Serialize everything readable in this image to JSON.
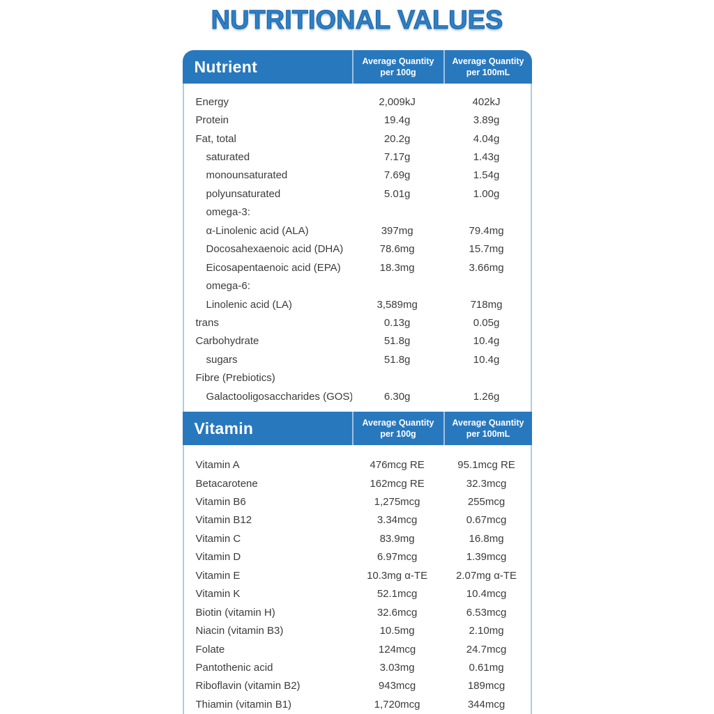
{
  "title": "NUTRITIONAL VALUES",
  "colors": {
    "header_blue": "#2878BE",
    "title_blue": "#2E80C4",
    "title_outline": "#1C5FA0",
    "body_border_light_blue": "#AECBE3",
    "text": "#3B3B3B"
  },
  "sections": [
    {
      "name": "Nutrient",
      "columns": [
        {
          "line1": "Average Quantity",
          "line2": "per 100g"
        },
        {
          "line1": "Average Quantity",
          "line2": "per 100mL"
        }
      ],
      "rows": [
        {
          "label": "Energy",
          "indent": false,
          "per_100g": "2,009kJ",
          "per_100ml": "402kJ"
        },
        {
          "label": "Protein",
          "indent": false,
          "per_100g": "19.4g",
          "per_100ml": "3.89g"
        },
        {
          "label": "Fat, total",
          "indent": false,
          "per_100g": "20.2g",
          "per_100ml": "4.04g"
        },
        {
          "label": "saturated",
          "indent": true,
          "per_100g": "7.17g",
          "per_100ml": "1.43g"
        },
        {
          "label": "monounsaturated",
          "indent": true,
          "per_100g": "7.69g",
          "per_100ml": "1.54g"
        },
        {
          "label": "polyunsaturated",
          "indent": true,
          "per_100g": "5.01g",
          "per_100ml": "1.00g"
        },
        {
          "label": "omega-3:",
          "indent": true,
          "per_100g": "",
          "per_100ml": ""
        },
        {
          "label": "α-Linolenic acid (ALA)",
          "indent": true,
          "per_100g": "397mg",
          "per_100ml": "79.4mg"
        },
        {
          "label": "Docosahexaenoic acid (DHA)",
          "indent": true,
          "per_100g": "78.6mg",
          "per_100ml": "15.7mg"
        },
        {
          "label": "Eicosapentaenoic acid (EPA)",
          "indent": true,
          "per_100g": "18.3mg",
          "per_100ml": "3.66mg"
        },
        {
          "label": "omega-6:",
          "indent": true,
          "per_100g": "",
          "per_100ml": ""
        },
        {
          "label": "Linolenic acid (LA)",
          "indent": true,
          "per_100g": "3,589mg",
          "per_100ml": "718mg"
        },
        {
          "label": "trans",
          "indent": false,
          "per_100g": "0.13g",
          "per_100ml": "0.05g"
        },
        {
          "label": "Carbohydrate",
          "indent": false,
          "per_100g": "51.8g",
          "per_100ml": "10.4g"
        },
        {
          "label": "sugars",
          "indent": true,
          "per_100g": "51.8g",
          "per_100ml": "10.4g"
        },
        {
          "label": "Fibre (Prebiotics)",
          "indent": false,
          "per_100g": "",
          "per_100ml": ""
        },
        {
          "label": "Galactooligosaccharides (GOS)",
          "indent": true,
          "per_100g": "6.30g",
          "per_100ml": "1.26g"
        }
      ]
    },
    {
      "name": "Vitamin",
      "columns": [
        {
          "line1": "Average Quantity",
          "line2": "per 100g"
        },
        {
          "line1": "Average Quantity",
          "line2": "per 100mL"
        }
      ],
      "rows": [
        {
          "label": "Vitamin A",
          "indent": false,
          "per_100g": "476mcg RE",
          "per_100ml": "95.1mcg RE"
        },
        {
          "label": "Betacarotene",
          "indent": false,
          "per_100g": "162mcg RE",
          "per_100ml": "32.3mcg"
        },
        {
          "label": "Vitamin B6",
          "indent": false,
          "per_100g": "1,275mcg",
          "per_100ml": "255mcg"
        },
        {
          "label": "Vitamin B12",
          "indent": false,
          "per_100g": "3.34mcg",
          "per_100ml": "0.67mcg"
        },
        {
          "label": "Vitamin C",
          "indent": false,
          "per_100g": "83.9mg",
          "per_100ml": "16.8mg"
        },
        {
          "label": "Vitamin D",
          "indent": false,
          "per_100g": "6.97mcg",
          "per_100ml": "1.39mcg"
        },
        {
          "label": "Vitamin E",
          "indent": false,
          "per_100g": "10.3mg α-TE",
          "per_100ml": "2.07mg α-TE"
        },
        {
          "label": "Vitamin K",
          "indent": false,
          "per_100g": "52.1mcg",
          "per_100ml": "10.4mcg"
        },
        {
          "label": "Biotin (vitamin H)",
          "indent": false,
          "per_100g": "32.6mcg",
          "per_100ml": "6.53mcg"
        },
        {
          "label": "Niacin (vitamin B3)",
          "indent": false,
          "per_100g": "10.5mg",
          "per_100ml": "2.10mg"
        },
        {
          "label": "Folate",
          "indent": false,
          "per_100g": "124mcg",
          "per_100ml": "24.7mcg"
        },
        {
          "label": "Pantothenic acid",
          "indent": false,
          "per_100g": "3.03mg",
          "per_100ml": "0.61mg"
        },
        {
          "label": "Riboflavin (vitamin B2)",
          "indent": false,
          "per_100g": "943mcg",
          "per_100ml": "189mcg"
        },
        {
          "label": "Thiamin (vitamin B1)",
          "indent": false,
          "per_100g": "1,720mcg",
          "per_100ml": "344mcg"
        }
      ]
    }
  ]
}
